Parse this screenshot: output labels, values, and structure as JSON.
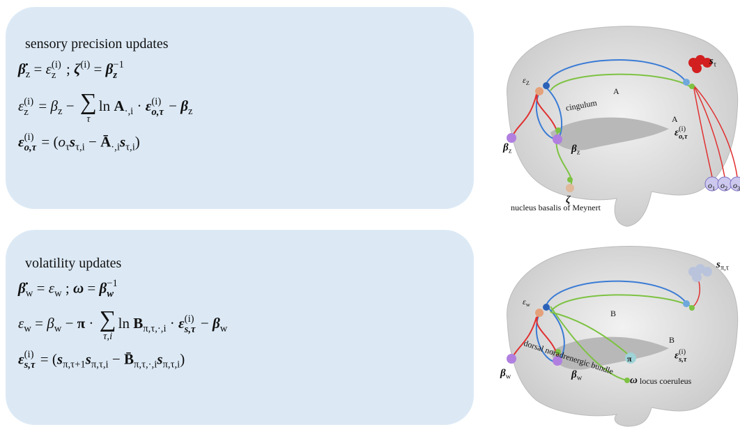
{
  "panels": [
    {
      "title": "sensory precision updates",
      "equations": [
        [
          "β̇",
          "z",
          " = ",
          "ε",
          "z",
          "(i)",
          " ;  ",
          "ζ",
          "(i)",
          " = ",
          "β",
          "z",
          "−1"
        ],
        [
          "ε",
          "z",
          "(i)",
          " = ",
          "β",
          "z",
          " − ",
          "∑",
          "τ",
          "ln ",
          "A",
          "·,i",
          " · ",
          "ε",
          "o,τ",
          "(i)",
          " − ",
          "β",
          "z"
        ],
        [
          "ε",
          "o,τ",
          "(i)",
          " = (",
          "o",
          "τ",
          "s",
          "τ,i",
          " − ",
          "Ā",
          "·,i",
          "s",
          "τ,i",
          ")"
        ]
      ],
      "brain_labels": [
        [
          "ε",
          "Z"
        ],
        [
          "A"
        ],
        [
          "A"
        ],
        [
          "cingulum"
        ],
        [
          "β",
          "z"
        ],
        [
          "β",
          "z"
        ],
        [
          "s",
          "τ"
        ],
        [
          "ε",
          "o,τ",
          "(i)"
        ],
        [
          "o",
          "1"
        ],
        [
          "o",
          "2"
        ],
        [
          "o",
          "3"
        ],
        [
          "ζ"
        ],
        [
          "nucleus basalis of Meynert"
        ]
      ]
    },
    {
      "title": "volatility updates",
      "equations": [
        [
          "β̇",
          "w",
          " = ",
          "ε",
          "w",
          " ;  ",
          "ω",
          " = ",
          "β",
          "w",
          "−1"
        ],
        [
          "ε",
          "w",
          " = ",
          "β",
          "w",
          " − ",
          "π",
          " · ",
          "∑",
          "τ,i",
          "ln ",
          "B",
          "π,τ,·,i",
          " · ",
          "ε",
          "s,τ",
          "(i)",
          " − ",
          "β",
          "w"
        ],
        [
          "ε",
          "s,τ",
          "(i)",
          " = (",
          "s",
          "π,τ+1",
          "s",
          "π,τ,i",
          " − ",
          "B̄",
          "π,τ,·,i",
          "s",
          "π,τ,i",
          ")"
        ]
      ],
      "brain_labels": [
        [
          "ε",
          "w"
        ],
        [
          "B"
        ],
        [
          "B"
        ],
        [
          "β",
          "w"
        ],
        [
          "β",
          "w"
        ],
        [
          "s",
          "π,τ"
        ],
        [
          "ε",
          "s,τ",
          "(i)"
        ],
        [
          "π"
        ],
        [
          "ω"
        ],
        [
          "dorsal noradrenergic bundle"
        ],
        [
          "locus coeruleus"
        ]
      ]
    }
  ]
}
